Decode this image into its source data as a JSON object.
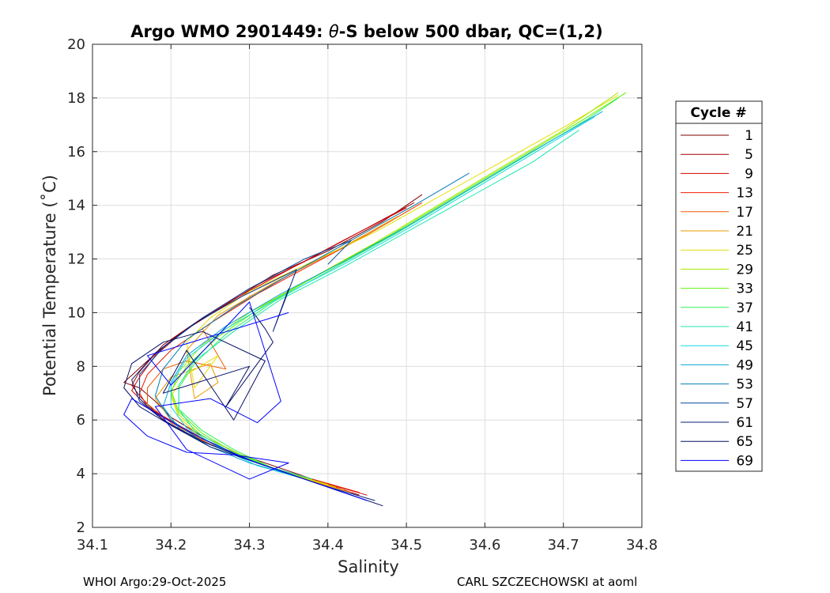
{
  "chart_data": {
    "type": "line",
    "title_parts": [
      "Argo WMO 2901449: ",
      "θ",
      "-S below 500 dbar,  QC=(1,2)"
    ],
    "xlabel": "Salinity",
    "ylabel": "Potential Temperature (˚C)",
    "xlim": [
      34.1,
      34.8
    ],
    "ylim": [
      2,
      20
    ],
    "xticks": [
      34.1,
      34.2,
      34.3,
      34.4,
      34.5,
      34.6,
      34.7,
      34.8
    ],
    "yticks": [
      2,
      4,
      6,
      8,
      10,
      12,
      14,
      16,
      18,
      20
    ],
    "grid": true,
    "legend": {
      "title": "Cycle #",
      "placement": "outside-right",
      "entries": [
        {
          "label": "1",
          "color": "#800000"
        },
        {
          "label": "5",
          "color": "#a50000"
        },
        {
          "label": "9",
          "color": "#d40000"
        },
        {
          "label": "13",
          "color": "#f21c00"
        },
        {
          "label": "17",
          "color": "#f45a00"
        },
        {
          "label": "21",
          "color": "#e89a00"
        },
        {
          "label": "25",
          "color": "#e5df00"
        },
        {
          "label": "29",
          "color": "#a8ea00"
        },
        {
          "label": "33",
          "color": "#5ef200"
        },
        {
          "label": "37",
          "color": "#2ef25a"
        },
        {
          "label": "41",
          "color": "#1de8b0"
        },
        {
          "label": "45",
          "color": "#14d8e8"
        },
        {
          "label": "49",
          "color": "#0aa7d8"
        },
        {
          "label": "53",
          "color": "#0679b8"
        },
        {
          "label": "57",
          "color": "#04459a"
        },
        {
          "label": "61",
          "color": "#06207a"
        },
        {
          "label": "65",
          "color": "#060f66"
        },
        {
          "label": "69",
          "color": "#0000ff"
        }
      ]
    },
    "series": [
      {
        "name": "1",
        "color": "#800000",
        "x": [
          34.44,
          34.4,
          34.35,
          34.29,
          34.24,
          34.2,
          34.18,
          34.16,
          34.14,
          34.17,
          34.21,
          34.27,
          34.33,
          34.4,
          34.47,
          34.52
        ],
        "y": [
          3.2,
          3.6,
          4.1,
          4.7,
          5.4,
          6.1,
          6.7,
          7.2,
          7.4,
          8.2,
          9.2,
          10.3,
          11.4,
          12.3,
          13.4,
          14.4
        ]
      },
      {
        "name": "5",
        "color": "#a50000",
        "x": [
          34.44,
          34.39,
          34.33,
          34.27,
          34.22,
          34.18,
          34.16,
          34.15,
          34.16,
          34.19,
          34.24,
          34.3,
          34.37,
          34.44,
          34.51
        ],
        "y": [
          3.2,
          3.7,
          4.2,
          4.9,
          5.6,
          6.3,
          6.9,
          7.3,
          7.8,
          8.8,
          9.8,
          10.9,
          11.9,
          13.0,
          14.1
        ]
      },
      {
        "name": "9",
        "color": "#d40000",
        "x": [
          34.45,
          34.39,
          34.32,
          34.26,
          34.21,
          34.17,
          34.15,
          34.16,
          34.18,
          34.22,
          34.28,
          34.35,
          34.42,
          34.5
        ],
        "y": [
          3.2,
          3.7,
          4.3,
          5.0,
          5.8,
          6.5,
          7.1,
          7.6,
          8.4,
          9.4,
          10.5,
          11.6,
          12.7,
          13.9
        ]
      },
      {
        "name": "13",
        "color": "#f21c00",
        "x": [
          34.44,
          34.38,
          34.32,
          34.25,
          34.2,
          34.17,
          34.16,
          34.17,
          34.2,
          34.25,
          34.31,
          34.38,
          34.45,
          34.52
        ],
        "y": [
          3.3,
          3.8,
          4.3,
          5.1,
          5.8,
          6.5,
          7.0,
          7.7,
          8.6,
          9.6,
          10.7,
          11.8,
          12.9,
          14.1
        ]
      },
      {
        "name": "17",
        "color": "#f45a00",
        "x": [
          34.43,
          34.37,
          34.31,
          34.25,
          34.2,
          34.17,
          34.17,
          34.19,
          34.22,
          34.27,
          34.24,
          34.3,
          34.37,
          34.45,
          34.52
        ],
        "y": [
          3.3,
          3.8,
          4.4,
          5.1,
          5.9,
          6.6,
          7.2,
          7.9,
          8.2,
          7.9,
          9.4,
          10.6,
          11.7,
          12.9,
          14.1
        ]
      },
      {
        "name": "21",
        "color": "#e89a00",
        "x": [
          34.42,
          34.36,
          34.3,
          34.24,
          34.2,
          34.18,
          34.2,
          34.25,
          34.26,
          34.23,
          34.22,
          34.26,
          34.33,
          34.41,
          34.49
        ],
        "y": [
          3.4,
          3.9,
          4.5,
          5.2,
          6.0,
          6.8,
          7.6,
          8.1,
          7.4,
          6.8,
          8.6,
          9.9,
          11.1,
          12.3,
          13.6
        ]
      },
      {
        "name": "25",
        "color": "#e5df00",
        "x": [
          34.41,
          34.35,
          34.29,
          34.24,
          34.21,
          34.2,
          34.22,
          34.26,
          34.23,
          34.22,
          34.25,
          34.3,
          34.38,
          34.46,
          34.54,
          34.62,
          34.7,
          34.77
        ],
        "y": [
          3.5,
          4.0,
          4.6,
          5.3,
          6.1,
          6.9,
          7.7,
          8.4,
          7.2,
          8.9,
          9.8,
          10.8,
          11.9,
          13.0,
          14.3,
          15.6,
          16.9,
          18.1
        ]
      },
      {
        "name": "29",
        "color": "#a8ea00",
        "x": [
          34.4,
          34.34,
          34.29,
          34.24,
          34.21,
          34.2,
          34.21,
          34.24,
          34.3,
          34.38,
          34.46,
          34.54,
          34.62,
          34.7,
          34.77
        ],
        "y": [
          3.6,
          4.1,
          4.7,
          5.4,
          6.2,
          7.0,
          7.8,
          8.8,
          10.0,
          11.3,
          12.6,
          14.0,
          15.4,
          16.8,
          18.2
        ]
      },
      {
        "name": "33",
        "color": "#5ef200",
        "x": [
          34.39,
          34.33,
          34.28,
          34.24,
          34.21,
          34.2,
          34.22,
          34.26,
          34.32,
          34.4,
          34.48,
          34.56,
          34.64,
          34.72,
          34.78
        ],
        "y": [
          3.6,
          4.2,
          4.8,
          5.5,
          6.3,
          7.1,
          8.0,
          9.1,
          10.3,
          11.6,
          12.9,
          14.3,
          15.7,
          17.1,
          18.2
        ]
      },
      {
        "name": "37",
        "color": "#2ef25a",
        "x": [
          34.38,
          34.33,
          34.28,
          34.24,
          34.21,
          34.21,
          34.23,
          34.27,
          34.33,
          34.41,
          34.49,
          34.57,
          34.65,
          34.73,
          34.77
        ],
        "y": [
          3.7,
          4.2,
          4.9,
          5.6,
          6.4,
          7.2,
          8.1,
          9.2,
          10.4,
          11.7,
          13.0,
          14.4,
          15.8,
          17.2,
          18.0
        ]
      },
      {
        "name": "41",
        "color": "#1de8b0",
        "x": [
          34.38,
          34.32,
          34.27,
          34.23,
          34.21,
          34.21,
          34.23,
          34.28,
          34.34,
          34.42,
          34.5,
          34.58,
          34.66,
          34.72
        ],
        "y": [
          3.8,
          4.3,
          4.9,
          5.6,
          6.4,
          7.3,
          8.2,
          9.3,
          10.5,
          11.7,
          13.0,
          14.3,
          15.6,
          16.8
        ]
      },
      {
        "name": "45",
        "color": "#14d8e8",
        "x": [
          34.37,
          34.31,
          34.26,
          34.22,
          34.2,
          34.2,
          34.22,
          34.27,
          34.34,
          34.42,
          34.5,
          34.58,
          34.66,
          34.74
        ],
        "y": [
          3.8,
          4.3,
          5.0,
          5.7,
          6.5,
          7.3,
          8.3,
          9.4,
          10.6,
          11.8,
          13.1,
          14.5,
          15.9,
          17.3
        ]
      },
      {
        "name": "49",
        "color": "#0aa7d8",
        "x": [
          34.36,
          34.3,
          34.25,
          34.21,
          34.19,
          34.2,
          34.22,
          34.27,
          34.34,
          34.42,
          34.5,
          34.58,
          34.66,
          34.75
        ],
        "y": [
          3.9,
          4.4,
          5.0,
          5.7,
          6.5,
          7.4,
          8.4,
          9.5,
          10.7,
          11.9,
          13.2,
          14.6,
          16.0,
          17.5
        ]
      },
      {
        "name": "53",
        "color": "#0679b8",
        "x": [
          34.44,
          34.37,
          34.3,
          34.24,
          34.2,
          34.18,
          34.19,
          34.22,
          34.28,
          34.35,
          34.43,
          34.51,
          34.58
        ],
        "y": [
          3.1,
          3.8,
          4.5,
          5.2,
          6.0,
          6.9,
          7.9,
          9.0,
          10.2,
          11.4,
          12.7,
          14.0,
          15.2
        ]
      },
      {
        "name": "57",
        "color": "#04459a",
        "x": [
          34.45,
          34.38,
          34.31,
          34.24,
          34.19,
          34.16,
          34.16,
          34.19,
          34.24,
          34.3,
          34.37,
          34.43,
          34.4
        ],
        "y": [
          3.0,
          3.7,
          4.4,
          5.2,
          6.0,
          6.8,
          7.7,
          8.7,
          9.8,
          10.9,
          12.0,
          12.7,
          11.8
        ]
      },
      {
        "name": "61",
        "color": "#06207a",
        "x": [
          34.46,
          34.39,
          34.31,
          34.24,
          34.19,
          34.16,
          34.15,
          34.18,
          34.23,
          34.29,
          34.36,
          34.33,
          34.35
        ],
        "y": [
          3.0,
          3.6,
          4.4,
          5.2,
          6.0,
          6.7,
          7.5,
          8.5,
          9.6,
          10.6,
          11.6,
          9.3,
          10.9
        ]
      },
      {
        "name": "65",
        "color": "#060f66",
        "x": [
          34.47,
          34.4,
          34.32,
          34.25,
          34.2,
          34.16,
          34.14,
          34.15,
          34.19,
          34.24,
          34.32,
          34.28,
          34.22,
          34.19,
          34.3,
          34.27,
          34.33,
          34.32,
          34.3
        ],
        "y": [
          2.8,
          3.5,
          4.3,
          5.0,
          5.8,
          6.5,
          7.2,
          8.1,
          8.9,
          9.3,
          8.2,
          6.0,
          8.6,
          7.0,
          8.0,
          6.5,
          8.9,
          9.4,
          10.2
        ]
      },
      {
        "name": "69",
        "color": "#0000ff",
        "x": [
          34.45,
          34.38,
          34.3,
          34.24,
          34.19,
          34.15,
          34.14,
          34.17,
          34.22,
          34.28,
          34.35,
          34.3,
          34.22,
          34.18,
          34.25,
          34.31,
          34.34,
          34.3,
          34.2,
          34.17,
          34.35
        ],
        "y": [
          3.0,
          3.7,
          4.5,
          5.3,
          6.1,
          6.8,
          6.2,
          5.4,
          4.8,
          4.7,
          4.4,
          3.8,
          4.9,
          6.5,
          6.8,
          5.9,
          6.7,
          10.4,
          7.3,
          8.4,
          10.0
        ]
      }
    ]
  },
  "footer": {
    "left": "WHOI Argo:29-Oct-2025",
    "right": "CARL SZCZECHOWSKI at aoml"
  }
}
